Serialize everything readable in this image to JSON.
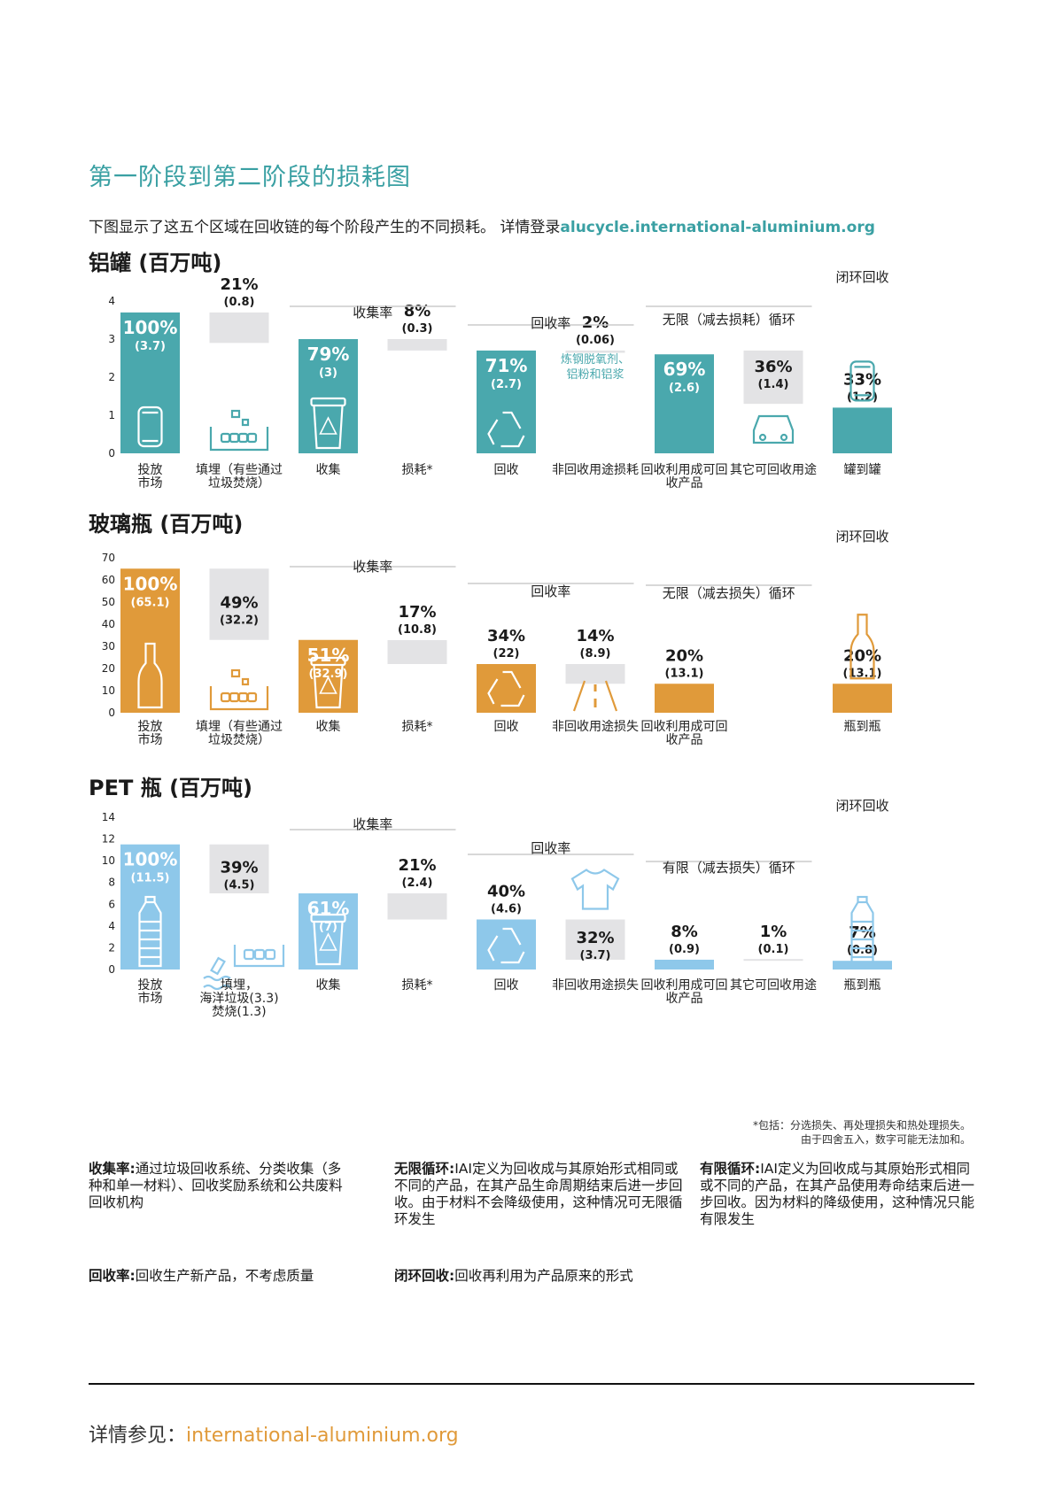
{
  "title": "第一阶段到第二阶段的损耗图",
  "intro": {
    "text": "下图显示了这五个区域在回收链的每个阶段产生的不同损耗。 详情登录",
    "link": "alucycle.international-aluminium.org"
  },
  "footnote": [
    "*包括：分选损失、再处理损失和热处理损失。",
    "由于四舍五入，数字可能无法加和。"
  ],
  "definitions": [
    {
      "term": "收集率:",
      "text": "通过垃圾回收系统、分类收集（多种和单一材料）、回收奖励系统和公共废料回收机构"
    },
    {
      "term": "无限循环:",
      "text": "IAI定义为回收成与其原始形式相同或不同的产品，在其产品生命周期结束后进一步回收。由于材料不会降级使用，这种情况可无限循环发生"
    },
    {
      "term": "有限循环:",
      "text": "IAI定义为回收成与其原始形式相同或不同的产品，在其产品使用寿命结束后进一步回收。因为材料的降级使用，这种情况只能有限发生"
    },
    {
      "term": "回收率:",
      "text": "回收生产新产品，不考虑质量"
    },
    {
      "term": "闭环回收:",
      "text": "回收再利用为产品原来的形式"
    }
  ],
  "footer": {
    "label": "详情参见：",
    "link": "international-aluminium.org"
  },
  "chart_data": [
    {
      "type": "bar",
      "title": "铝罐 (百万吨)",
      "color": "#4aa8ad",
      "loss_color": "#e3e3e5",
      "ylim": [
        0,
        4
      ],
      "yticks": [
        0,
        1,
        2,
        3,
        4
      ],
      "categories": [
        "投放市场",
        "填埋（有些通过垃圾焚烧）",
        "收集",
        "损耗*",
        "回收",
        "非回收用途损耗",
        "回收利用成可回收产品",
        "其它可回收用途",
        "罐到罐"
      ],
      "bars": [
        {
          "label": "投放市场",
          "pct": "100%",
          "value": 3.7,
          "base": 0,
          "kind": "main",
          "icon": "can-icon"
        },
        {
          "label": "填埋（有些通过垃圾焚烧）",
          "pct": "21%",
          "value": 0.8,
          "base": 2.9,
          "kind": "loss",
          "icon": "landfill-icon"
        },
        {
          "label": "收集",
          "pct": "79%",
          "value": 3.0,
          "base": 0,
          "kind": "main",
          "icon": "bin-icon"
        },
        {
          "label": "损耗*",
          "pct": "8%",
          "value": 0.3,
          "base": 2.7,
          "kind": "loss",
          "icon": ""
        },
        {
          "label": "回收",
          "pct": "71%",
          "value": 2.7,
          "base": 0,
          "kind": "main",
          "icon": "recycle-icon"
        },
        {
          "label": "非回收用途损耗",
          "pct": "2%",
          "value": 0.06,
          "base": 2.64,
          "kind": "loss",
          "icon": "",
          "note": "炼钢脱氧剂、铝粉和铝浆"
        },
        {
          "label": "回收利用成可回收产品",
          "pct": "69%",
          "value": 2.6,
          "base": 0,
          "kind": "main",
          "icon": ""
        },
        {
          "label": "其它可回收用途",
          "pct": "36%",
          "value": 1.4,
          "base": 1.3,
          "kind": "loss",
          "icon": "car-icon"
        },
        {
          "label": "罐到罐",
          "pct": "33%",
          "value": 1.2,
          "base": 0,
          "kind": "main",
          "icon": "can-icon"
        }
      ],
      "brackets": [
        {
          "text": "收集率"
        },
        {
          "text": "回收率"
        },
        {
          "text": "无限（减去损耗）循环"
        }
      ],
      "closed_loop_label": "闭环回收"
    },
    {
      "type": "bar",
      "title": "玻璃瓶 (百万吨)",
      "color": "#e09a3a",
      "loss_color": "#e3e3e5",
      "ylim": [
        0,
        70
      ],
      "yticks": [
        0,
        10,
        20,
        30,
        40,
        50,
        60,
        70
      ],
      "categories": [
        "投放市场",
        "填埋（有些通过垃圾焚烧）",
        "收集",
        "损耗*",
        "回收",
        "非回收用途损失",
        "回收利用成可回收产品",
        "",
        "瓶到瓶"
      ],
      "bars": [
        {
          "label": "投放市场",
          "pct": "100%",
          "value": 65.1,
          "base": 0,
          "kind": "main",
          "icon": "glass-bottle-icon"
        },
        {
          "label": "填埋（有些通过垃圾焚烧）",
          "pct": "49%",
          "value": 32.2,
          "base": 32.9,
          "kind": "loss",
          "icon": "landfill-icon"
        },
        {
          "label": "收集",
          "pct": "51%",
          "value": 32.9,
          "base": 0,
          "kind": "main",
          "icon": "bin-icon"
        },
        {
          "label": "损耗*",
          "pct": "17%",
          "value": 10.8,
          "base": 22.0,
          "kind": "loss",
          "icon": ""
        },
        {
          "label": "回收",
          "pct": "34%",
          "value": 22.0,
          "base": 0,
          "kind": "main",
          "icon": "recycle-icon"
        },
        {
          "label": "非回收用途损失",
          "pct": "14%",
          "value": 8.9,
          "base": 13.1,
          "kind": "loss",
          "icon": "road-icon"
        },
        {
          "label": "回收利用成可回收产品",
          "pct": "20%",
          "value": 13.1,
          "base": 0,
          "kind": "main",
          "icon": ""
        },
        {
          "label": "",
          "pct": "",
          "value": 0,
          "base": 0,
          "kind": "none",
          "icon": ""
        },
        {
          "label": "瓶到瓶",
          "pct": "20%",
          "value": 13.1,
          "base": 0,
          "kind": "main",
          "icon": "glass-bottle-icon"
        }
      ],
      "brackets": [
        {
          "text": "收集率"
        },
        {
          "text": "回收率"
        },
        {
          "text": "无限（减去损失）循环"
        }
      ],
      "closed_loop_label": "闭环回收"
    },
    {
      "type": "bar",
      "title": "PET 瓶 (百万吨)",
      "color": "#8ec8ea",
      "loss_color": "#e3e3e5",
      "ylim": [
        0,
        14
      ],
      "yticks": [
        0,
        2,
        4,
        6,
        8,
        10,
        12,
        14
      ],
      "categories": [
        "投放市场",
        "填埋，海洋垃圾(3.3)焚烧(1.3)",
        "收集",
        "损耗*",
        "回收",
        "非回收用途损失",
        "回收利用成可回收产品",
        "其它可回收用途",
        "瓶到瓶"
      ],
      "bars": [
        {
          "label": "投放市场",
          "pct": "100%",
          "value": 11.5,
          "base": 0,
          "kind": "main",
          "icon": "pet-bottle-icon"
        },
        {
          "label": "填埋，海洋垃圾(3.3)焚烧(1.3)",
          "pct": "39%",
          "value": 4.5,
          "base": 7.0,
          "kind": "loss",
          "icon": "ocean-landfill-icon"
        },
        {
          "label": "收集",
          "pct": "61%",
          "value": 7.0,
          "base": 0,
          "kind": "main",
          "icon": "bin-icon"
        },
        {
          "label": "损耗*",
          "pct": "21%",
          "value": 2.4,
          "base": 4.6,
          "kind": "loss",
          "icon": ""
        },
        {
          "label": "回收",
          "pct": "40%",
          "value": 4.6,
          "base": 0,
          "kind": "main",
          "icon": "recycle-icon"
        },
        {
          "label": "非回收用途损失",
          "pct": "32%",
          "value": 3.7,
          "base": 0.9,
          "kind": "loss",
          "icon": "tshirt-icon"
        },
        {
          "label": "回收利用成可回收产品",
          "pct": "8%",
          "value": 0.9,
          "base": 0,
          "kind": "main",
          "icon": ""
        },
        {
          "label": "其它可回收用途",
          "pct": "1%",
          "value": 0.1,
          "base": 0.8,
          "kind": "loss",
          "icon": ""
        },
        {
          "label": "瓶到瓶",
          "pct": "7%",
          "value": 0.8,
          "base": 0,
          "kind": "main",
          "icon": "pet-bottle-icon"
        }
      ],
      "brackets": [
        {
          "text": "收集率"
        },
        {
          "text": "回收率"
        },
        {
          "text": "有限（减去损失）循环"
        }
      ],
      "closed_loop_label": "闭环回收"
    }
  ]
}
